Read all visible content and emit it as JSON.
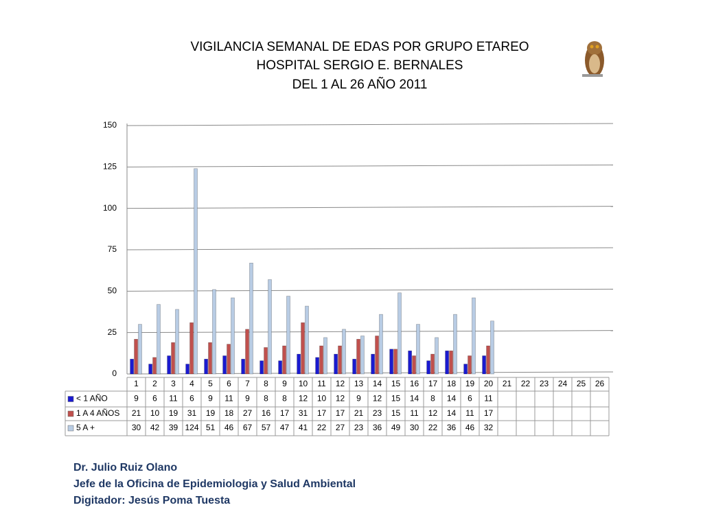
{
  "chart_data": {
    "type": "bar",
    "title": "VIGILANCIA SEMANAL DE EDAS POR GRUPO ETAREO",
    "subtitle": [
      "HOSPITAL SERGIO E. BERNALES",
      "DEL 1 AL 26 AÑO 2011"
    ],
    "categories": [
      "1",
      "2",
      "3",
      "4",
      "5",
      "6",
      "7",
      "8",
      "9",
      "10",
      "11",
      "12",
      "13",
      "14",
      "15",
      "16",
      "17",
      "18",
      "19",
      "20",
      "21",
      "22",
      "23",
      "24",
      "25",
      "26"
    ],
    "series": [
      {
        "name": "< 1 AÑO",
        "color": "#1a1ad0",
        "values": [
          9,
          6,
          11,
          6,
          9,
          11,
          9,
          8,
          8,
          12,
          10,
          12,
          9,
          12,
          15,
          14,
          8,
          14,
          6,
          11,
          null,
          null,
          null,
          null,
          null,
          null
        ]
      },
      {
        "name": "1 A 4 AÑOS",
        "color": "#c0504d",
        "values": [
          21,
          10,
          19,
          31,
          19,
          18,
          27,
          16,
          17,
          31,
          17,
          17,
          21,
          23,
          15,
          11,
          12,
          14,
          11,
          17,
          null,
          null,
          null,
          null,
          null,
          null
        ]
      },
      {
        "name": "5 A +",
        "color": "#b8cce4",
        "values": [
          30,
          42,
          39,
          124,
          51,
          46,
          67,
          57,
          47,
          41,
          22,
          27,
          23,
          36,
          49,
          30,
          22,
          36,
          46,
          32,
          null,
          null,
          null,
          null,
          null,
          null
        ]
      }
    ],
    "ylim": [
      0,
      150
    ],
    "yticks": [
      0,
      25,
      50,
      75,
      100,
      125,
      150
    ],
    "grid": true
  },
  "footer": [
    "Dr.  Julio Ruiz Olano",
    "Jefe de la Oficina de Epidemiologia y  Salud Ambiental",
    "Digitador: Jesús Poma Tuesta"
  ]
}
